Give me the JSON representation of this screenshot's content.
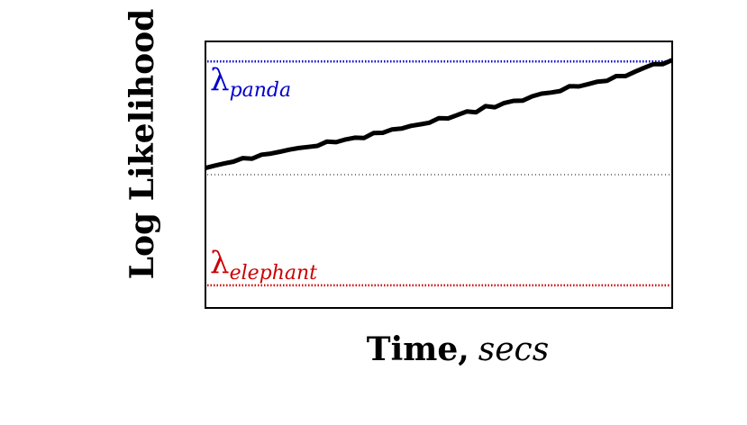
{
  "chart_data": {
    "type": "line",
    "title": "",
    "ylabel": "Log Likelihood",
    "xlabel_main": "Time,",
    "xlabel_unit": "secs",
    "xlim": [
      0,
      100
    ],
    "ylim": [
      0,
      100
    ],
    "grid": false,
    "ticks": false,
    "series": [
      {
        "values_x": [
          0,
          2,
          4,
          6,
          8,
          10,
          12,
          14,
          16,
          18,
          20,
          22,
          24,
          26,
          28,
          30,
          32,
          34,
          36,
          38,
          40,
          42,
          44,
          46,
          48,
          50,
          52,
          54,
          56,
          58,
          60,
          62,
          64,
          66,
          68,
          70,
          72,
          74,
          76,
          78,
          80,
          82,
          84,
          86,
          88,
          90,
          92,
          94,
          96,
          98,
          100
        ],
        "values_y": [
          52.5,
          53.4,
          54.2,
          54.9,
          56.2,
          56.0,
          57.5,
          57.9,
          58.6,
          59.4,
          60.0,
          60.4,
          60.8,
          62.4,
          62.2,
          63.2,
          63.9,
          63.8,
          65.6,
          65.7,
          67.0,
          67.3,
          68.3,
          68.9,
          69.5,
          71.2,
          71.1,
          72.4,
          73.7,
          73.4,
          75.7,
          75.3,
          76.9,
          77.7,
          77.8,
          79.4,
          80.4,
          80.8,
          81.4,
          83.2,
          83.1,
          84.0,
          84.9,
          85.2,
          87.0,
          87.0,
          88.6,
          90.1,
          91.5,
          91.5,
          93.0
        ],
        "color": "#000000"
      }
    ],
    "thresholds": [
      {
        "name": "panda",
        "label_sym": "λ",
        "label_sub": "panda",
        "y": 92.5,
        "color": "#0000cc"
      },
      {
        "name": "middle",
        "y": 50,
        "color": "#000000"
      },
      {
        "name": "elephant",
        "label_sym": "λ",
        "label_sub": "elephant",
        "y": 8.5,
        "color": "#cc0000"
      }
    ]
  }
}
